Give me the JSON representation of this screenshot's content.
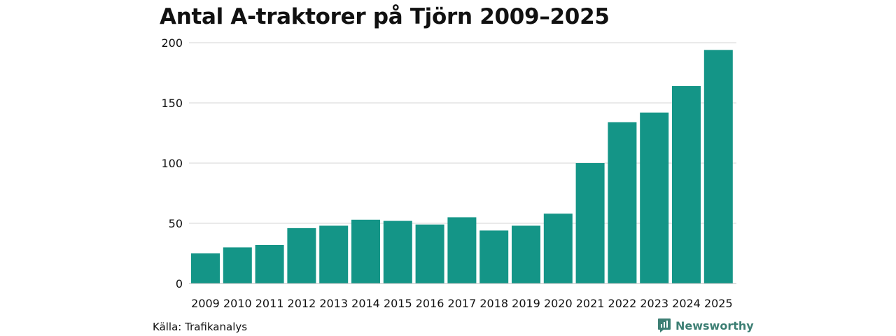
{
  "chart_data": {
    "type": "bar",
    "title": "Antal A-traktorer på Tjörn 2009–2025",
    "xlabel": "",
    "ylabel": "",
    "categories": [
      "2009",
      "2010",
      "2011",
      "2012",
      "2013",
      "2014",
      "2015",
      "2016",
      "2017",
      "2018",
      "2019",
      "2020",
      "2021",
      "2022",
      "2023",
      "2024",
      "2025"
    ],
    "values": [
      25,
      30,
      32,
      46,
      48,
      53,
      52,
      49,
      55,
      44,
      48,
      58,
      100,
      134,
      142,
      164,
      194
    ],
    "ylim": [
      0,
      200
    ],
    "yticks": [
      0,
      50,
      100,
      150,
      200
    ],
    "grid": true,
    "bar_color": "#149587",
    "grid_color": "#dddddd"
  },
  "footer": {
    "source": "Källa: Trafikanalys",
    "brand": "Newsworthy",
    "brand_color": "#3d7f74"
  }
}
